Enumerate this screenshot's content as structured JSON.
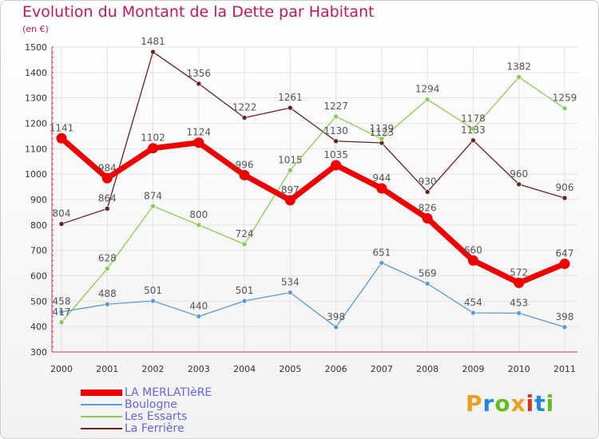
{
  "header": {
    "title": "Evolution du Montant de la Dette par Habitant",
    "unit": "(en €)"
  },
  "logo": {
    "text": "Proxiti",
    "colors": [
      "#e8a020",
      "#2288dd",
      "#66bb22",
      "#e8a020",
      "#dd3322",
      "#2288dd",
      "#66bb22"
    ]
  },
  "chart_data": {
    "type": "line",
    "title": "Evolution du Montant de la Dette par Habitant",
    "ylabel": "(en €)",
    "xlabel": "",
    "x": [
      "2000",
      "2001",
      "2002",
      "2003",
      "2004",
      "2005",
      "2006",
      "2007",
      "2008",
      "2009",
      "2010",
      "2011"
    ],
    "ylim": [
      300,
      1500
    ],
    "yticks": [
      300,
      400,
      500,
      600,
      700,
      800,
      900,
      1000,
      1100,
      1200,
      1300,
      1400,
      1500
    ],
    "grid": true,
    "legend": "bottom-left",
    "series": [
      {
        "name": "LA MERLATIèRE",
        "color": "#ee0000",
        "values": [
          1141,
          984,
          1102,
          1124,
          996,
          897,
          1035,
          944,
          826,
          660,
          572,
          647
        ]
      },
      {
        "name": "Boulogne",
        "color": "#5b9bd5",
        "values": [
          458,
          488,
          501,
          440,
          501,
          534,
          398,
          651,
          569,
          454,
          453,
          398
        ]
      },
      {
        "name": "Les Essarts",
        "color": "#88cc55",
        "values": [
          417,
          628,
          874,
          800,
          724,
          1015,
          1227,
          1139,
          1294,
          1178,
          1382,
          1259
        ]
      },
      {
        "name": "La Ferrière",
        "color": "#6b1f1f",
        "values": [
          804,
          864,
          1481,
          1356,
          1222,
          1261,
          1130,
          1123,
          930,
          1133,
          960,
          906
        ]
      }
    ]
  }
}
